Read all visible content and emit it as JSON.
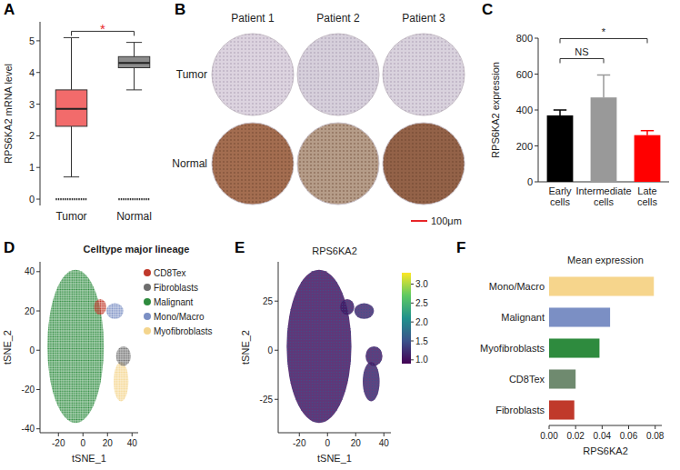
{
  "chart_data": [
    {
      "panel": "A",
      "type": "box",
      "y_label": "RPS6KA2 mRNA level",
      "categories": [
        "Tumor",
        "Normal"
      ],
      "colors": [
        "#f26b6b",
        "#8c8c8c"
      ],
      "boxes": [
        {
          "whisker_low": 0.7,
          "q1": 2.3,
          "median": 2.85,
          "q3": 3.45,
          "whisker_high": 5.1,
          "outliers": [
            0
          ]
        },
        {
          "whisker_low": 3.45,
          "q1": 4.15,
          "median": 4.3,
          "q3": 4.5,
          "whisker_high": 4.95,
          "outliers": [
            0
          ]
        }
      ],
      "ylim": [
        -0.2,
        5.6
      ],
      "yticks": [
        0,
        1,
        2,
        3,
        4,
        5
      ],
      "significance": [
        {
          "between": [
            0,
            1
          ],
          "label": "*",
          "color": "#e8262a"
        }
      ]
    },
    {
      "panel": "B",
      "type": "image_grid",
      "columns": [
        "Patient 1",
        "Patient 2",
        "Patient 3"
      ],
      "rows": [
        "Tumor",
        "Normal"
      ],
      "scale_bar": "100μm"
    },
    {
      "panel": "C",
      "type": "bar",
      "y_label": "RPS6KA2 expression",
      "categories": [
        "Early cells",
        "Intermediate cells",
        "Late cells"
      ],
      "values": [
        370,
        470,
        260
      ],
      "errors": [
        30,
        125,
        25
      ],
      "colors": [
        "#000000",
        "#999999",
        "#ff0000"
      ],
      "ylim": [
        0,
        800
      ],
      "yticks": [
        0,
        200,
        400,
        600,
        800
      ],
      "significance": [
        {
          "between": [
            0,
            1
          ],
          "label": "NS",
          "color": "#222222"
        },
        {
          "between": [
            0,
            2
          ],
          "label": "*",
          "color": "#222222"
        }
      ]
    },
    {
      "panel": "D",
      "type": "scatter",
      "title": "Celltype major lineage",
      "x_label": "tSNE_1",
      "y_label": "tSNE_2",
      "xlim": [
        -35,
        45
      ],
      "ylim": [
        -42,
        45
      ],
      "xticks": [
        -20,
        0,
        20,
        40
      ],
      "yticks": [
        -40,
        -20,
        0,
        20,
        40
      ],
      "legend": "right",
      "clusters": [
        {
          "name": "CD8Tex",
          "color": "#c0392b",
          "center": [
            14,
            22
          ],
          "spread": [
            5,
            4
          ]
        },
        {
          "name": "Fibroblasts",
          "color": "#6e6e6e",
          "center": [
            33,
            -3
          ],
          "spread": [
            6,
            5
          ]
        },
        {
          "name": "Malignant",
          "color": "#2e8b3e",
          "center": [
            -6,
            2
          ],
          "spread": [
            23,
            39
          ]
        },
        {
          "name": "Mono/Macro",
          "color": "#7b8fc4",
          "center": [
            26,
            20
          ],
          "spread": [
            7,
            4
          ]
        },
        {
          "name": "Myofibroblasts",
          "color": "#f4d58d",
          "center": [
            31,
            -16
          ],
          "spread": [
            6,
            10
          ]
        }
      ]
    },
    {
      "panel": "E",
      "type": "scatter",
      "title": "RPS6KA2",
      "x_label": "tSNE_1",
      "y_label": "tSNE_2",
      "xlim": [
        -35,
        45
      ],
      "ylim": [
        -42,
        45
      ],
      "xticks": [
        -20,
        0,
        20,
        40
      ],
      "yticks": [
        -25,
        0,
        25
      ],
      "colorbar": {
        "range": [
          0.9,
          3.3
        ],
        "ticks": [
          {
            "value": 1,
            "label": "1.0"
          },
          1.5,
          {
            "value": 2,
            "label": "2.0"
          },
          2.5,
          {
            "value": 3,
            "label": "3.0"
          }
        ]
      },
      "regions": [
        {
          "center": [
            -6,
            2
          ],
          "spread": [
            23,
            39
          ],
          "value": 1.05
        },
        {
          "center": [
            14,
            22
          ],
          "spread": [
            5,
            4
          ],
          "value": 1.1
        },
        {
          "center": [
            26,
            20
          ],
          "spread": [
            7,
            4
          ],
          "value": 1.2
        },
        {
          "center": [
            33,
            -3
          ],
          "spread": [
            6,
            5
          ],
          "value": 1.1
        },
        {
          "center": [
            31,
            -16
          ],
          "spread": [
            6,
            10
          ],
          "value": 1.15
        }
      ]
    },
    {
      "panel": "F",
      "type": "bar",
      "orientation": "horizontal",
      "title": "Mean expression",
      "x_label": "RPS6KA2",
      "categories": [
        "Mono/Macro",
        "Malignant",
        "Myofibroblasts",
        "CD8Tex",
        "Fibroblasts"
      ],
      "values": [
        0.079,
        0.046,
        0.038,
        0.02,
        0.019
      ],
      "colors": [
        "#f6d58c",
        "#7b8fc4",
        "#2e8b3e",
        "#6f8a6f",
        "#c0392b"
      ],
      "xlim": [
        0,
        0.085
      ],
      "xticks": [
        {
          "value": 0,
          "label": "0.00"
        },
        0.02,
        0.04,
        0.06,
        0.08
      ]
    }
  ]
}
